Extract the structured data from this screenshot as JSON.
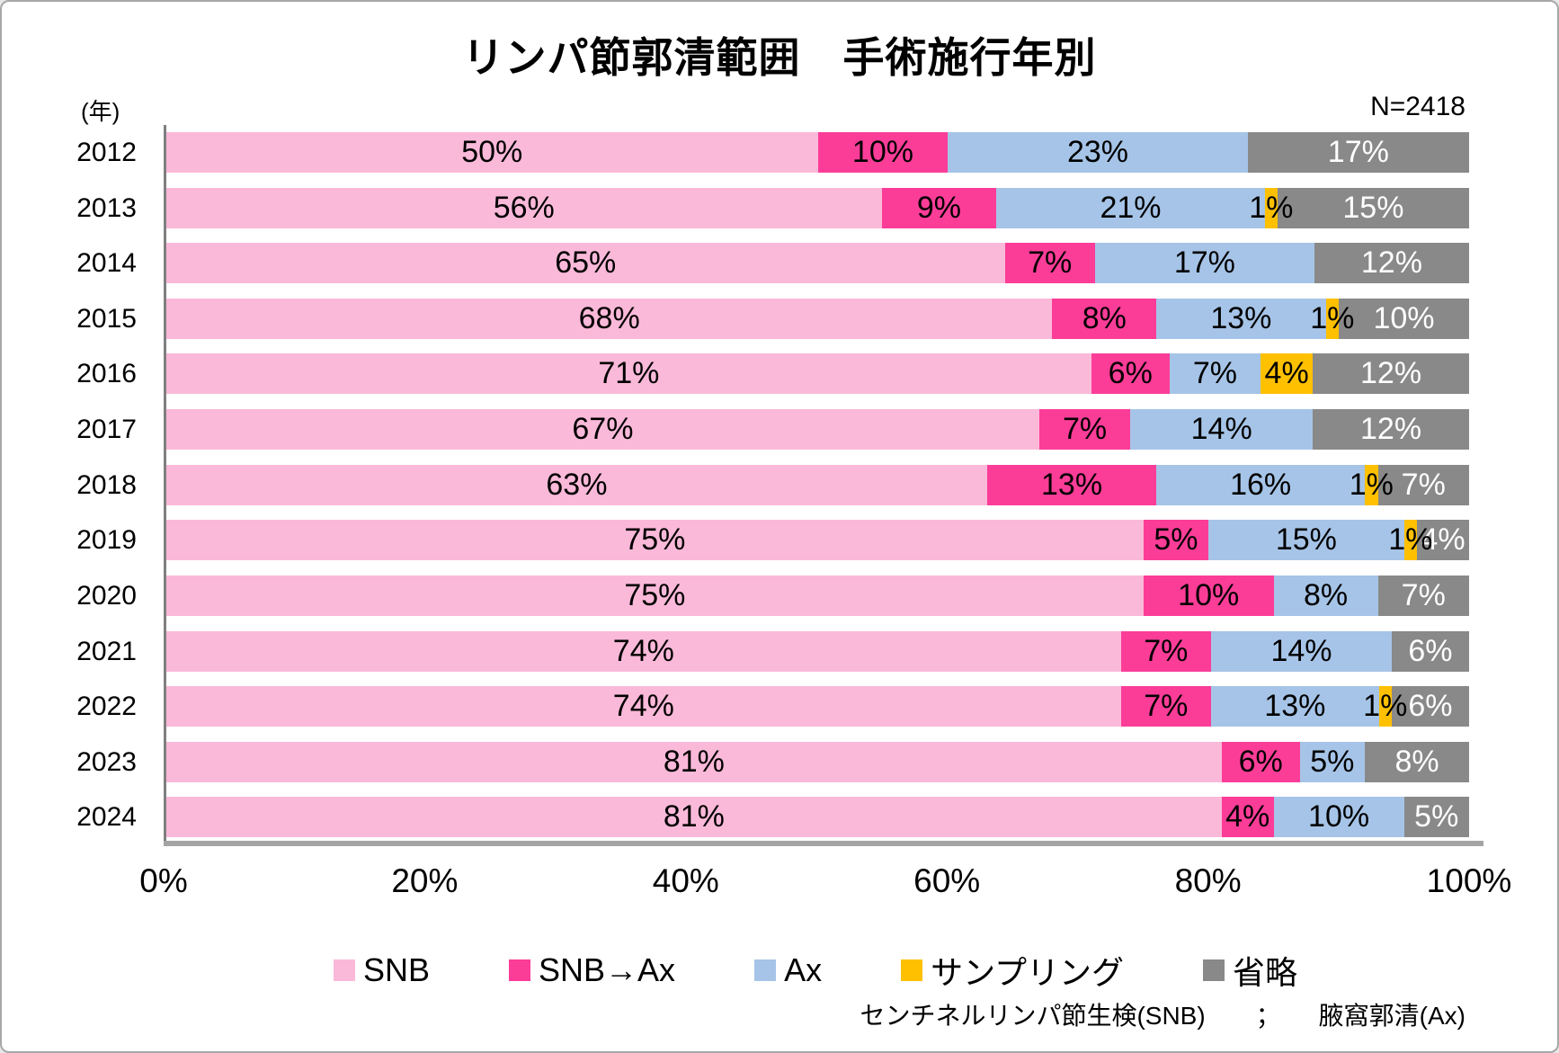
{
  "title": "リンパ節郭清範囲　手術施行年別",
  "axis_unit_label": "(年)",
  "sample_size_label": "N=2418",
  "footnote": "センチネルリンパ節生検(SNB)　　；　　腋窩郭清(Ax)",
  "colors": {
    "snb": "#FBB9D9",
    "snb_to_ax": "#FB3D98",
    "ax": "#A6C4E7",
    "sampling": "#FFC000",
    "omit": "#898989",
    "axis_line": "#7F7F7F",
    "plot_shadow": "#A4A4A4",
    "frame_border": "#A8A8A8",
    "omit_label_text": "#FFFFFF"
  },
  "chart_data": {
    "type": "bar",
    "stacked": true,
    "percent_stacked": true,
    "orientation": "horizontal",
    "title": "リンパ節郭清範囲　手術施行年別",
    "n_total": 2418,
    "categories": [
      "2012",
      "2013",
      "2014",
      "2015",
      "2016",
      "2017",
      "2018",
      "2019",
      "2020",
      "2021",
      "2022",
      "2023",
      "2024"
    ],
    "series": [
      {
        "name": "SNB",
        "color": "#FBB9D9",
        "label_color": "#000000",
        "values": [
          50,
          56,
          65,
          68,
          71,
          67,
          63,
          75,
          75,
          74,
          74,
          81,
          81
        ]
      },
      {
        "name": "SNB→Ax",
        "color": "#FB3D98",
        "label_color": "#000000",
        "values": [
          10,
          9,
          7,
          8,
          6,
          7,
          13,
          5,
          10,
          7,
          7,
          6,
          4
        ]
      },
      {
        "name": "Ax",
        "color": "#A6C4E7",
        "label_color": "#000000",
        "values": [
          23,
          21,
          17,
          13,
          7,
          14,
          16,
          15,
          8,
          14,
          13,
          5,
          10
        ]
      },
      {
        "name": "サンプリング",
        "color": "#FFC000",
        "label_color": "#000000",
        "values": [
          0,
          1,
          0,
          1,
          4,
          0,
          1,
          1,
          0,
          0,
          1,
          0,
          0
        ]
      },
      {
        "name": "省略",
        "color": "#898989",
        "label_color": "#FFFFFF",
        "values": [
          17,
          15,
          12,
          10,
          12,
          12,
          7,
          4,
          7,
          6,
          6,
          8,
          5
        ]
      }
    ],
    "x_ticks": [
      "0%",
      "20%",
      "40%",
      "60%",
      "80%",
      "100%"
    ],
    "xlim": [
      0,
      100
    ],
    "grid": false,
    "legend_position": "bottom",
    "data_labels": "inside-center, shown as integer percent"
  }
}
